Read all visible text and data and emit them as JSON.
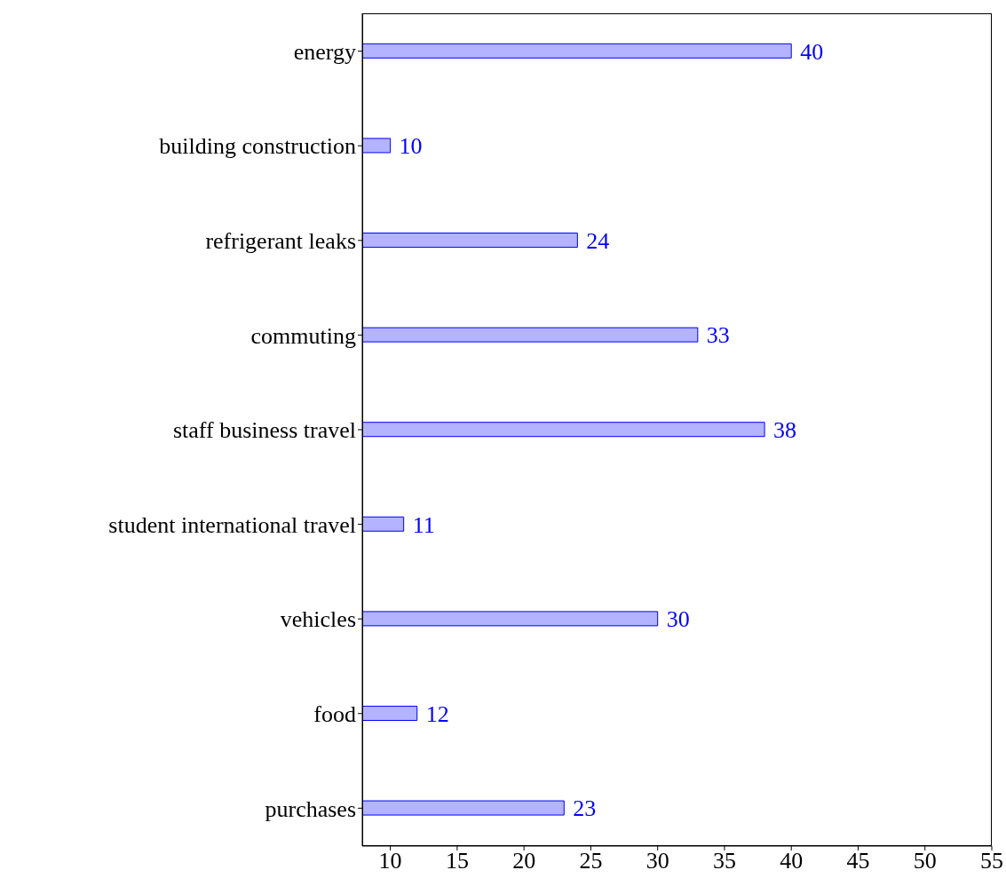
{
  "chart_data": {
    "type": "bar",
    "orientation": "horizontal",
    "categories": [
      "energy",
      "building construction",
      "refrigerant leaks",
      "commuting",
      "staff business travel",
      "student international travel",
      "vehicles",
      "food",
      "purchases"
    ],
    "values": [
      40,
      10,
      24,
      33,
      38,
      11,
      30,
      12,
      23
    ],
    "color": "#b3b3ff",
    "xlim": [
      7.9,
      55
    ],
    "xticks": [
      10,
      15,
      20,
      25,
      30,
      35,
      40,
      45,
      50,
      55
    ],
    "data_labels": true
  }
}
